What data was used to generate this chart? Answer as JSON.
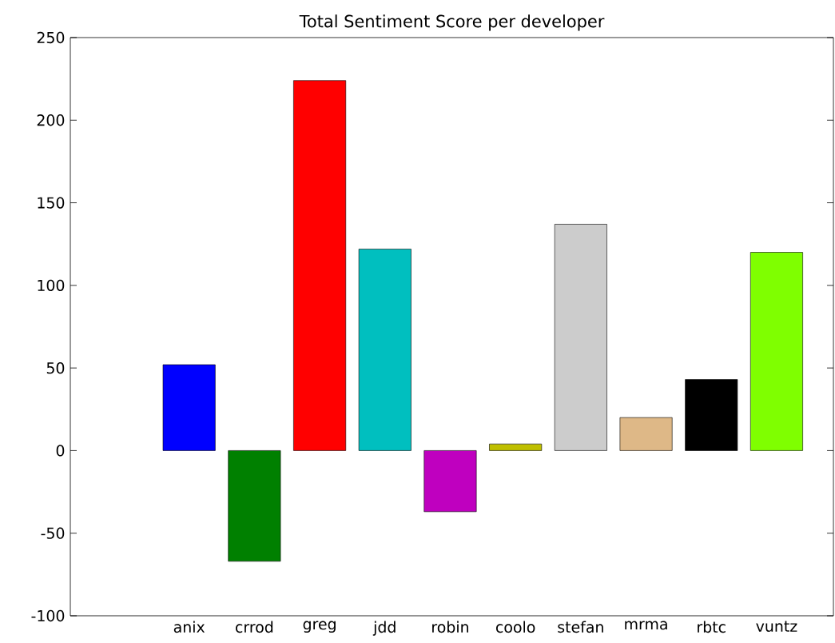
{
  "chart_data": {
    "type": "bar",
    "title": "Total Sentiment Score per developer",
    "categories": [
      "anix",
      "crrod",
      "greg",
      "jdd",
      "robin",
      "coolo",
      "stefan",
      "mrma",
      "rbtc",
      "vuntz"
    ],
    "values": [
      52,
      -67,
      224,
      122,
      -37,
      4,
      137,
      20,
      43,
      120
    ],
    "colors": [
      "#0000ff",
      "#008000",
      "#ff0000",
      "#00bfbf",
      "#bf00bf",
      "#bfbf00",
      "#cccccc",
      "#deb887",
      "#000000",
      "#7fff00"
    ],
    "ylim": [
      -100,
      250
    ],
    "yticks": [
      -100,
      -50,
      0,
      50,
      100,
      150,
      200,
      250
    ],
    "grid": false
  }
}
